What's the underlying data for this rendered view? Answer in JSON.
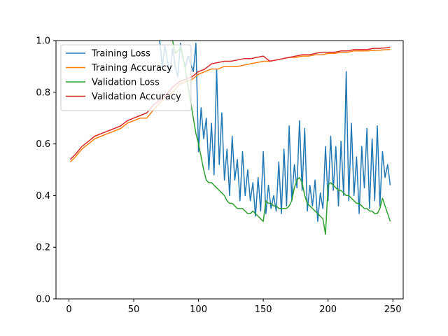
{
  "chart_data": {
    "type": "line",
    "title": "",
    "xlabel": "",
    "ylabel": "",
    "xlim": [
      -10,
      258
    ],
    "ylim": [
      0.0,
      1.0
    ],
    "xticks": [
      0,
      50,
      100,
      150,
      200,
      250
    ],
    "yticks": [
      0.0,
      0.2,
      0.4,
      0.6,
      0.8,
      1.0
    ],
    "xtick_labels": [
      "0",
      "50",
      "100",
      "150",
      "200",
      "250"
    ],
    "ytick_labels": [
      "0.0",
      "0.2",
      "0.4",
      "0.6",
      "0.8",
      "1.0"
    ],
    "legend_position": "top-left",
    "series": [
      {
        "name": "Training Loss",
        "color": "#1f77b4",
        "x": [
          70,
          72,
          74,
          76,
          78,
          80,
          82,
          84,
          86,
          88,
          90,
          92,
          94,
          96,
          98,
          100,
          102,
          104,
          106,
          108,
          110,
          112,
          114,
          116,
          118,
          120,
          122,
          124,
          126,
          128,
          130,
          132,
          134,
          136,
          138,
          140,
          142,
          144,
          146,
          148,
          150,
          152,
          154,
          156,
          158,
          160,
          162,
          164,
          166,
          168,
          170,
          172,
          174,
          176,
          178,
          180,
          182,
          184,
          186,
          188,
          190,
          192,
          194,
          196,
          198,
          200,
          202,
          204,
          206,
          208,
          210,
          212,
          214,
          216,
          218,
          220,
          222,
          224,
          226,
          228,
          230,
          232,
          234,
          236,
          238,
          240,
          242,
          244,
          246,
          248
        ],
        "values": [
          1.0,
          0.9,
          0.98,
          0.92,
          0.88,
          0.97,
          0.9,
          0.86,
          0.99,
          0.93,
          0.9,
          0.94,
          0.91,
          0.88,
          0.99,
          0.57,
          0.74,
          0.62,
          0.7,
          0.5,
          0.68,
          0.48,
          0.89,
          0.52,
          0.72,
          0.46,
          0.58,
          0.4,
          0.63,
          0.46,
          0.54,
          0.38,
          0.57,
          0.4,
          0.5,
          0.38,
          0.45,
          0.32,
          0.47,
          0.34,
          0.57,
          0.33,
          0.44,
          0.35,
          0.4,
          0.34,
          0.53,
          0.33,
          0.58,
          0.36,
          0.67,
          0.38,
          0.52,
          0.43,
          0.69,
          0.42,
          0.66,
          0.34,
          0.44,
          0.36,
          0.46,
          0.3,
          0.41,
          0.35,
          0.59,
          0.38,
          0.63,
          0.42,
          0.59,
          0.36,
          0.61,
          0.4,
          0.88,
          0.38,
          0.68,
          0.4,
          0.55,
          0.33,
          0.59,
          0.43,
          0.66,
          0.35,
          0.62,
          0.38,
          0.67,
          0.36,
          0.57,
          0.47,
          0.52,
          0.44
        ]
      },
      {
        "name": "Training Accuracy",
        "color": "#ff7f0e",
        "x": [
          1,
          5,
          10,
          15,
          20,
          25,
          30,
          35,
          40,
          45,
          50,
          55,
          60,
          65,
          70,
          75,
          80,
          85,
          90,
          95,
          100,
          105,
          110,
          115,
          120,
          125,
          130,
          135,
          140,
          145,
          150,
          155,
          160,
          165,
          170,
          175,
          180,
          185,
          190,
          195,
          200,
          205,
          210,
          215,
          220,
          225,
          230,
          235,
          240,
          245,
          248
        ],
        "values": [
          0.53,
          0.55,
          0.58,
          0.6,
          0.62,
          0.63,
          0.64,
          0.65,
          0.66,
          0.68,
          0.69,
          0.7,
          0.7,
          0.73,
          0.76,
          0.78,
          0.8,
          0.83,
          0.84,
          0.85,
          0.87,
          0.88,
          0.89,
          0.89,
          0.9,
          0.9,
          0.9,
          0.905,
          0.91,
          0.915,
          0.92,
          0.92,
          0.925,
          0.93,
          0.935,
          0.935,
          0.94,
          0.94,
          0.945,
          0.945,
          0.95,
          0.95,
          0.955,
          0.955,
          0.96,
          0.96,
          0.96,
          0.962,
          0.963,
          0.965,
          0.965
        ]
      },
      {
        "name": "Validation Loss",
        "color": "#2ca02c",
        "x": [
          80,
          82,
          84,
          86,
          88,
          90,
          92,
          94,
          96,
          98,
          100,
          102,
          104,
          106,
          108,
          110,
          112,
          114,
          116,
          118,
          120,
          122,
          124,
          126,
          128,
          130,
          132,
          134,
          136,
          138,
          140,
          142,
          144,
          146,
          148,
          150,
          152,
          154,
          156,
          158,
          160,
          162,
          164,
          166,
          168,
          170,
          172,
          174,
          176,
          178,
          180,
          182,
          184,
          186,
          188,
          190,
          192,
          194,
          196,
          198,
          200,
          202,
          204,
          206,
          208,
          210,
          212,
          214,
          216,
          218,
          220,
          222,
          224,
          226,
          228,
          230,
          232,
          234,
          236,
          238,
          240,
          242,
          244,
          246,
          248
        ],
        "values": [
          1.0,
          0.95,
          0.96,
          0.97,
          0.94,
          0.88,
          0.82,
          0.76,
          0.7,
          0.64,
          0.6,
          0.55,
          0.5,
          0.46,
          0.45,
          0.45,
          0.44,
          0.43,
          0.42,
          0.41,
          0.4,
          0.38,
          0.37,
          0.37,
          0.36,
          0.35,
          0.35,
          0.35,
          0.34,
          0.33,
          0.33,
          0.34,
          0.33,
          0.32,
          0.31,
          0.3,
          0.38,
          0.37,
          0.37,
          0.36,
          0.36,
          0.35,
          0.35,
          0.35,
          0.35,
          0.36,
          0.38,
          0.43,
          0.46,
          0.47,
          0.45,
          0.4,
          0.37,
          0.36,
          0.35,
          0.34,
          0.33,
          0.32,
          0.31,
          0.25,
          0.44,
          0.45,
          0.44,
          0.43,
          0.42,
          0.42,
          0.41,
          0.4,
          0.4,
          0.39,
          0.38,
          0.37,
          0.37,
          0.36,
          0.35,
          0.35,
          0.34,
          0.34,
          0.33,
          0.33,
          0.35,
          0.39,
          0.36,
          0.33,
          0.3
        ]
      },
      {
        "name": "Validation Accuracy",
        "color": "#d62728",
        "x": [
          1,
          5,
          10,
          15,
          20,
          25,
          30,
          35,
          40,
          45,
          50,
          55,
          60,
          65,
          70,
          75,
          80,
          85,
          90,
          95,
          100,
          105,
          110,
          115,
          120,
          125,
          130,
          135,
          140,
          145,
          150,
          155,
          160,
          165,
          170,
          175,
          180,
          185,
          190,
          195,
          200,
          205,
          210,
          215,
          220,
          225,
          230,
          235,
          240,
          245,
          248
        ],
        "values": [
          0.54,
          0.56,
          0.59,
          0.61,
          0.63,
          0.64,
          0.65,
          0.66,
          0.67,
          0.69,
          0.7,
          0.71,
          0.72,
          0.75,
          0.77,
          0.79,
          0.82,
          0.84,
          0.85,
          0.86,
          0.88,
          0.89,
          0.91,
          0.915,
          0.92,
          0.92,
          0.925,
          0.93,
          0.93,
          0.935,
          0.94,
          0.92,
          0.925,
          0.93,
          0.935,
          0.94,
          0.945,
          0.945,
          0.95,
          0.955,
          0.955,
          0.955,
          0.96,
          0.96,
          0.965,
          0.965,
          0.965,
          0.97,
          0.97,
          0.972,
          0.975
        ]
      }
    ]
  }
}
